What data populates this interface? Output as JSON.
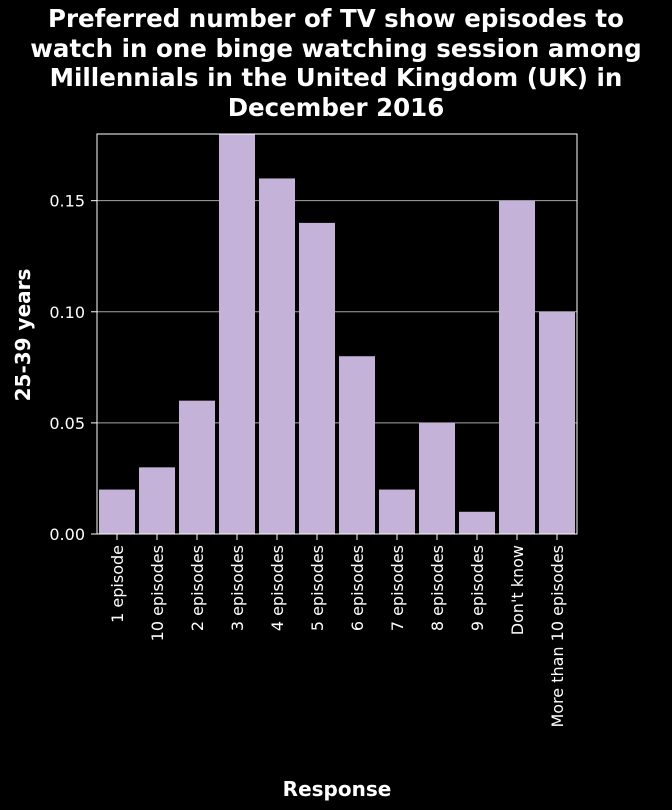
{
  "title_lines": [
    "Preferred number of TV show episodes to",
    "watch in one binge watching session among",
    "Millennials in the United Kingdom (UK) in",
    "December 2016"
  ],
  "colors": {
    "background": "#000000",
    "bar": "#c4b2d9",
    "text": "#ffffff",
    "grid": "#a6a6a6",
    "axis": "#ffffff"
  },
  "chart_data": {
    "type": "bar",
    "title": "Preferred number of TV show episodes to watch in one binge watching session among Millennials in the United Kingdom (UK) in December 2016",
    "xlabel": "Response",
    "ylabel": "25-39 years",
    "categories": [
      "1 episode",
      "10 episodes",
      "2 episodes",
      "3 episodes",
      "4 episodes",
      "5 episodes",
      "6 episodes",
      "7 episodes",
      "8 episodes",
      "9 episodes",
      "Don't know",
      "More than 10 episodes"
    ],
    "values": [
      0.02,
      0.03,
      0.06,
      0.18,
      0.16,
      0.14,
      0.08,
      0.02,
      0.05,
      0.01,
      0.15,
      0.1
    ],
    "ylim": [
      0,
      0.18
    ],
    "yticks": [
      "0.00",
      "0.05",
      "0.10",
      "0.15"
    ],
    "ytick_values": [
      0,
      0.05,
      0.1,
      0.15
    ],
    "grid": "horizontal",
    "legend": "none"
  }
}
